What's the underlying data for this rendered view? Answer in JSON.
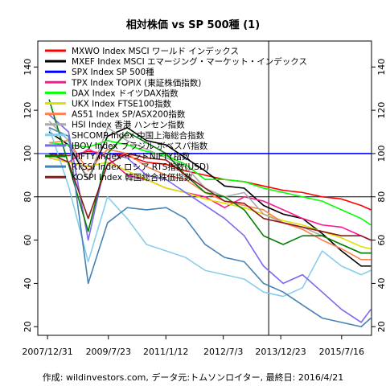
{
  "chart_data": {
    "type": "line",
    "title": "相対株価 vs SP 500種 (1)",
    "footer": "作成: wildinvestors.com, データ元:トムソンロイター, 最終日: 2016/4/21",
    "x_tick_labels": [
      "2007/12/31",
      "2009/7/23",
      "2011/1/12",
      "2012/7/3",
      "2013/12/23",
      "2015/7/16"
    ],
    "x_tick_dates": [
      "2007-12-31",
      "2009-07-23",
      "2011-01-12",
      "2012-07-03",
      "2013-12-23",
      "2015-07-16"
    ],
    "x_range": [
      "2007-10-01",
      "2016-04-21"
    ],
    "y_ticks": [
      20,
      40,
      60,
      80,
      100,
      120,
      140
    ],
    "ylim": [
      16,
      152
    ],
    "grid": false,
    "legend_position": "top-left",
    "reference_lines": [
      {
        "orientation": "horizontal",
        "value": 100,
        "color": "#0000ff"
      },
      {
        "orientation": "horizontal",
        "value": 80,
        "color": "#000000"
      },
      {
        "orientation": "vertical",
        "date": "2013-09-01",
        "color": "#000000"
      }
    ],
    "x": [
      "2008-01",
      "2008-07",
      "2009-01",
      "2009-07",
      "2010-01",
      "2010-07",
      "2011-01",
      "2011-07",
      "2012-01",
      "2012-07",
      "2013-01",
      "2013-07",
      "2014-01",
      "2014-07",
      "2015-01",
      "2015-07",
      "2016-01",
      "2016-04"
    ],
    "series": [
      {
        "name": "MXWO Index MSCI ワールド インデックス",
        "color": "#ff0000",
        "values": [
          100,
          99,
          101,
          100,
          99,
          96,
          95,
          92,
          90,
          88,
          87,
          85,
          83,
          82,
          80,
          79,
          76,
          74
        ]
      },
      {
        "name": "MXEF Index MSCI エマージング・マーケット・インデックス",
        "color": "#000000",
        "values": [
          110,
          104,
          88,
          108,
          112,
          106,
          104,
          98,
          92,
          85,
          84,
          76,
          72,
          70,
          63,
          55,
          48,
          48
        ]
      },
      {
        "name": "SPX Index SP 500種",
        "color": "#0000ff",
        "values": [
          100,
          100,
          100,
          100,
          100,
          100,
          100,
          100,
          100,
          100,
          100,
          100,
          100,
          100,
          100,
          100,
          100,
          100
        ]
      },
      {
        "name": "TPX Index TOPIX (東証株価指数)",
        "color": "#ff1493",
        "values": [
          98,
          96,
          102,
          98,
          90,
          88,
          84,
          82,
          80,
          75,
          80,
          78,
          74,
          70,
          67,
          66,
          62,
          60
        ]
      },
      {
        "name": "DAX Index ドイツDAX指数",
        "color": "#00ff00",
        "values": [
          105,
          104,
          103,
          106,
          104,
          101,
          99,
          95,
          88,
          88,
          87,
          84,
          82,
          80,
          78,
          74,
          70,
          67
        ]
      },
      {
        "name": "UKX Index FTSE100指数",
        "color": "#e0e000",
        "values": [
          98,
          96,
          94,
          96,
          92,
          88,
          84,
          82,
          79,
          77,
          75,
          72,
          69,
          67,
          64,
          61,
          57,
          56
        ]
      },
      {
        "name": "AS51 Index SP/ASX200指数",
        "color": "#ff7f50",
        "values": [
          105,
          106,
          92,
          102,
          100,
          94,
          90,
          88,
          82,
          78,
          76,
          74,
          68,
          65,
          60,
          56,
          51,
          51
        ]
      },
      {
        "name": "HSI Index 香港 ハンセン指数",
        "color": "#a9a9a9",
        "values": [
          115,
          106,
          88,
          112,
          106,
          102,
          98,
          94,
          84,
          80,
          82,
          72,
          68,
          66,
          62,
          58,
          54,
          54
        ]
      },
      {
        "name": "SHCOMP Index 中国上海総合指数",
        "color": "#87ceeb",
        "values": [
          112,
          85,
          50,
          80,
          70,
          58,
          55,
          52,
          46,
          44,
          42,
          36,
          34,
          38,
          55,
          48,
          44,
          46
        ]
      },
      {
        "name": "IBOV Index ブラジル ボベスパ指数",
        "color": "#7b68ee",
        "values": [
          118,
          110,
          60,
          100,
          98,
          90,
          88,
          82,
          76,
          70,
          62,
          48,
          40,
          44,
          36,
          28,
          22,
          28
        ]
      },
      {
        "name": "NIFTY Index インドNIFTY指数",
        "color": "#008000",
        "values": [
          125,
          95,
          64,
          100,
          110,
          105,
          100,
          90,
          82,
          80,
          74,
          62,
          58,
          62,
          62,
          58,
          54,
          54
        ]
      },
      {
        "name": "RTSSI Index ロシア RTS指数(USD)",
        "color": "#4682b4",
        "values": [
          112,
          108,
          40,
          68,
          75,
          74,
          75,
          70,
          58,
          52,
          50,
          40,
          36,
          30,
          24,
          22,
          20,
          24
        ]
      },
      {
        "name": "KOSPI Index 韓国総合株価指数",
        "color": "#8b1a1a",
        "values": [
          100,
          96,
          70,
          95,
          100,
          98,
          97,
          90,
          84,
          78,
          77,
          70,
          68,
          66,
          64,
          62,
          62,
          60
        ]
      }
    ]
  }
}
